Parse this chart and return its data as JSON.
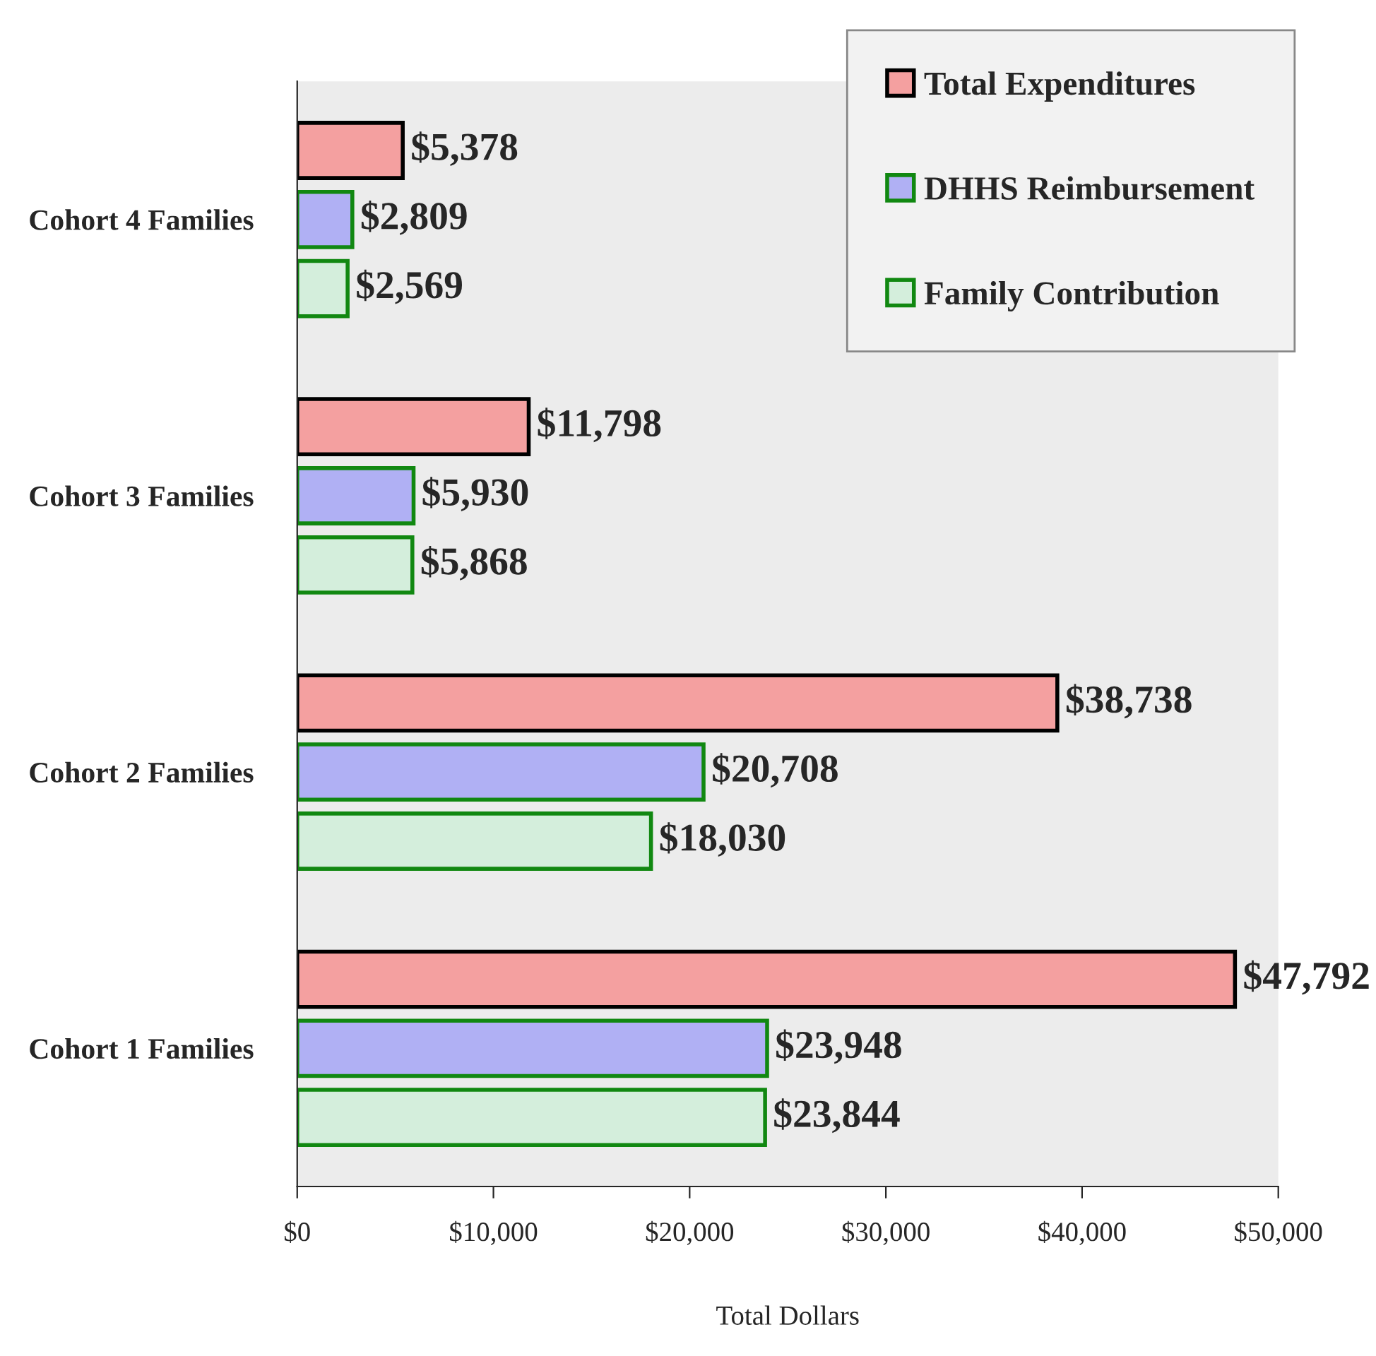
{
  "chart_data": {
    "type": "bar",
    "orientation": "horizontal",
    "xlabel": "Total Dollars",
    "categories": [
      "Cohort 4 Families",
      "Cohort 3 Families",
      "Cohort 2 Families",
      "Cohort 1 Families"
    ],
    "series": [
      {
        "name": "Total Expenditures",
        "color": "#f4a0a0",
        "values": [
          5378,
          11798,
          38738,
          47792
        ],
        "value_labels": [
          "$5,378",
          "$11,798",
          "$38,738",
          "$47,792"
        ]
      },
      {
        "name": "DHHS Reimbursement",
        "color": "#b0b0f4",
        "values": [
          2809,
          5930,
          20708,
          23948
        ],
        "value_labels": [
          "$2,809",
          "$5,930",
          "$20,708",
          "$23,948"
        ]
      },
      {
        "name": "Family Contribution",
        "color": "#d4eedc",
        "values": [
          2569,
          5868,
          18030,
          23844
        ],
        "value_labels": [
          "$2,569",
          "$5,868",
          "$18,030",
          "$23,844"
        ]
      }
    ],
    "xlim": [
      0,
      50000
    ],
    "xticks": [
      {
        "value": 0,
        "label": "$0"
      },
      {
        "value": 10000,
        "label": "$10,000"
      },
      {
        "value": 20000,
        "label": "$20,000"
      },
      {
        "value": 30000,
        "label": "$30,000"
      },
      {
        "value": 40000,
        "label": "$40,000"
      },
      {
        "value": 50000,
        "label": "$50,000"
      }
    ],
    "grid": false,
    "legend": "top right"
  }
}
